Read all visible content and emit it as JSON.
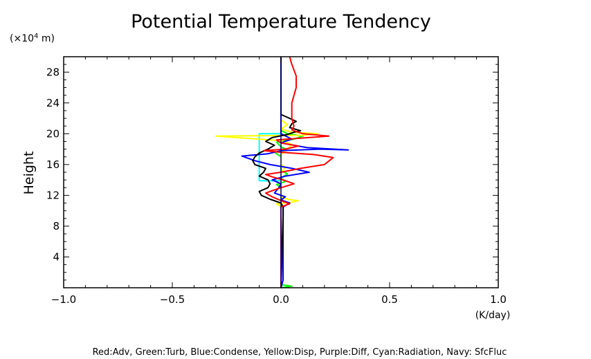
{
  "chart_data": {
    "type": "line",
    "title": "Potential Temperature Tendency",
    "ylabel": "Height",
    "y_unit_prefix": "(×10",
    "y_unit_exp": "4",
    "y_unit_suffix": " m)",
    "x_unit": "(K/day)",
    "legend_text": "Red:Adv, Green:Turb, Blue:Condense, Yellow:Disp, Purple:Diff, Cyan:Radiation, Navy: SfcFluc",
    "xlim": [
      -1.0,
      1.0
    ],
    "ylim": [
      0,
      30
    ],
    "x_ticks": [
      {
        "value": -1.0,
        "label": "−1.0"
      },
      {
        "value": -0.5,
        "label": "−0.5"
      },
      {
        "value": 0.0,
        "label": "0.0"
      },
      {
        "value": 0.5,
        "label": "0.5"
      },
      {
        "value": 1.0,
        "label": "1.0"
      }
    ],
    "y_ticks": [
      {
        "value": 4,
        "label": "4"
      },
      {
        "value": 8,
        "label": "8"
      },
      {
        "value": 12,
        "label": "12"
      },
      {
        "value": 16,
        "label": "16"
      },
      {
        "value": 20,
        "label": "20"
      },
      {
        "value": 24,
        "label": "24"
      },
      {
        "value": 28,
        "label": "28"
      }
    ],
    "zero_line": {
      "x": 0.0,
      "color": "#000080"
    },
    "series": [
      {
        "color": "#00ffff",
        "points": [
          [
            0.0,
            0
          ],
          [
            0.0,
            13.9
          ],
          [
            -0.1,
            13.9
          ],
          [
            -0.1,
            20.0
          ],
          [
            0.0,
            20.0
          ],
          [
            0.0,
            30
          ]
        ]
      },
      {
        "color": "#00ff00",
        "points": [
          [
            0.0,
            0
          ],
          [
            0.05,
            0.2
          ],
          [
            0.0,
            0.4
          ],
          [
            0.0,
            13.0
          ],
          [
            -0.02,
            13.4
          ],
          [
            0.02,
            13.8
          ],
          [
            0.0,
            14.2
          ],
          [
            0.03,
            14.8
          ],
          [
            0.0,
            15.2
          ],
          [
            0.0,
            17.0
          ],
          [
            -0.03,
            17.6
          ],
          [
            0.03,
            17.9
          ],
          [
            0.0,
            18.3
          ],
          [
            -0.02,
            18.9
          ],
          [
            0.06,
            19.3
          ],
          [
            0.1,
            19.7
          ],
          [
            0.03,
            20.0
          ],
          [
            0.0,
            20.4
          ],
          [
            0.0,
            30
          ]
        ]
      },
      {
        "color": "#ffff00",
        "points": [
          [
            0.0,
            0
          ],
          [
            0.0,
            10.5
          ],
          [
            -0.02,
            10.9
          ],
          [
            0.05,
            11.1
          ],
          [
            0.08,
            11.3
          ],
          [
            0.03,
            11.5
          ],
          [
            0.0,
            11.8
          ],
          [
            0.0,
            15.0
          ],
          [
            0.02,
            15.6
          ],
          [
            0.0,
            16.0
          ],
          [
            0.0,
            17.3
          ],
          [
            0.03,
            18.0
          ],
          [
            0.05,
            18.6
          ],
          [
            0.0,
            19.1
          ],
          [
            -0.3,
            19.7
          ],
          [
            0.1,
            19.8
          ],
          [
            0.17,
            20.0
          ],
          [
            0.05,
            20.2
          ],
          [
            0.0,
            20.6
          ],
          [
            0.03,
            21.2
          ],
          [
            0.0,
            21.8
          ],
          [
            0.0,
            30
          ]
        ]
      },
      {
        "color": "#0000ff",
        "points": [
          [
            0.0,
            0
          ],
          [
            0.01,
            1.0
          ],
          [
            0.01,
            10.5
          ],
          [
            0.04,
            11.0
          ],
          [
            0.0,
            11.4
          ],
          [
            0.02,
            11.8
          ],
          [
            -0.03,
            12.3
          ],
          [
            -0.01,
            13.0
          ],
          [
            0.0,
            13.5
          ],
          [
            -0.04,
            14.0
          ],
          [
            0.02,
            14.5
          ],
          [
            0.13,
            15.0
          ],
          [
            0.05,
            15.5
          ],
          [
            -0.05,
            16.0
          ],
          [
            -0.12,
            16.5
          ],
          [
            -0.18,
            17.1
          ],
          [
            -0.06,
            17.4
          ],
          [
            0.0,
            17.8
          ],
          [
            0.18,
            18.0
          ],
          [
            0.31,
            17.9
          ],
          [
            0.12,
            18.2
          ],
          [
            0.0,
            18.8
          ],
          [
            0.05,
            19.3
          ],
          [
            0.0,
            20.0
          ],
          [
            0.0,
            30
          ]
        ]
      },
      {
        "color": "#000000",
        "points": [
          [
            0.0,
            0
          ],
          [
            0.01,
            9.5
          ],
          [
            0.01,
            10.5
          ],
          [
            0.0,
            11.0
          ],
          [
            -0.05,
            11.5
          ],
          [
            -0.09,
            12.0
          ],
          [
            -0.1,
            12.5
          ],
          [
            -0.06,
            13.0
          ],
          [
            -0.05,
            13.5
          ],
          [
            -0.06,
            14.0
          ],
          [
            -0.1,
            14.5
          ],
          [
            -0.08,
            15.0
          ],
          [
            -0.07,
            15.5
          ],
          [
            -0.12,
            16.0
          ],
          [
            -0.13,
            16.5
          ],
          [
            -0.12,
            17.0
          ],
          [
            -0.1,
            17.5
          ],
          [
            -0.06,
            18.0
          ],
          [
            -0.03,
            18.5
          ],
          [
            -0.07,
            19.0
          ],
          [
            -0.04,
            19.5
          ],
          [
            0.03,
            19.9
          ],
          [
            0.06,
            20.2
          ],
          [
            0.09,
            20.4
          ],
          [
            0.04,
            20.8
          ],
          [
            0.05,
            21.3
          ],
          [
            0.07,
            21.6
          ],
          [
            0.04,
            22.0
          ],
          [
            0.0,
            22.5
          ],
          [
            0.0,
            30
          ]
        ]
      },
      {
        "color": "#ff0000",
        "points": [
          [
            0.0,
            0
          ],
          [
            0.0,
            0.6
          ],
          [
            0.0,
            9.0
          ],
          [
            0.0,
            10.5
          ],
          [
            0.04,
            10.9
          ],
          [
            0.01,
            11.2
          ],
          [
            -0.04,
            11.8
          ],
          [
            -0.07,
            12.3
          ],
          [
            -0.04,
            12.6
          ],
          [
            0.0,
            13.0
          ],
          [
            0.06,
            13.5
          ],
          [
            0.01,
            14.0
          ],
          [
            -0.04,
            14.4
          ],
          [
            -0.07,
            14.7
          ],
          [
            0.0,
            15.0
          ],
          [
            0.09,
            15.5
          ],
          [
            0.2,
            16.0
          ],
          [
            0.24,
            16.9
          ],
          [
            0.15,
            17.3
          ],
          [
            0.0,
            17.6
          ],
          [
            -0.08,
            17.8
          ],
          [
            0.02,
            18.0
          ],
          [
            0.08,
            18.4
          ],
          [
            0.0,
            18.8
          ],
          [
            -0.02,
            19.2
          ],
          [
            0.22,
            19.7
          ],
          [
            0.1,
            20.0
          ],
          [
            0.05,
            20.5
          ],
          [
            0.06,
            21.0
          ],
          [
            0.05,
            22.0
          ],
          [
            0.05,
            24.0
          ],
          [
            0.07,
            26.0
          ],
          [
            0.07,
            27.5
          ],
          [
            0.05,
            29.0
          ],
          [
            0.04,
            30.0
          ]
        ]
      }
    ]
  }
}
